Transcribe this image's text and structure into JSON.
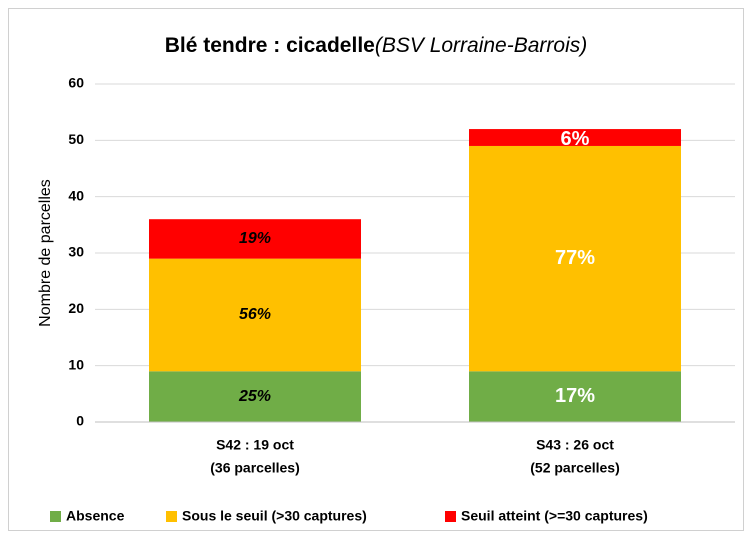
{
  "chart_data": {
    "type": "stacked-bar",
    "title": "Blé tendre : cicadelle",
    "title_note": "(BSV Lorraine-Barrois)",
    "y_label": "Nombre de parcelles",
    "categories": [
      "S42 : 19 oct",
      "S43 : 26 oct"
    ],
    "category_notes": [
      "(36 parcelles)",
      "(52 parcelles)"
    ],
    "series": [
      {
        "name": "Absence",
        "color": "#70ad47",
        "values": [
          9,
          9
        ],
        "percent_labels": [
          "25%",
          "17%"
        ]
      },
      {
        "name": "Sous le seuil (>30 captures)",
        "color": "#ffc000",
        "values": [
          20,
          40
        ],
        "percent_labels": [
          "56%",
          "77%"
        ]
      },
      {
        "name": "Seuil atteint (>=30 captures)",
        "color": "#ff0000",
        "values": [
          7,
          3
        ],
        "percent_labels": [
          "19%",
          "6%"
        ]
      }
    ],
    "ylim": [
      0,
      60
    ],
    "yticks": [
      0,
      10,
      20,
      30,
      40,
      50,
      60
    ],
    "grid": true,
    "legend": "bottom"
  }
}
